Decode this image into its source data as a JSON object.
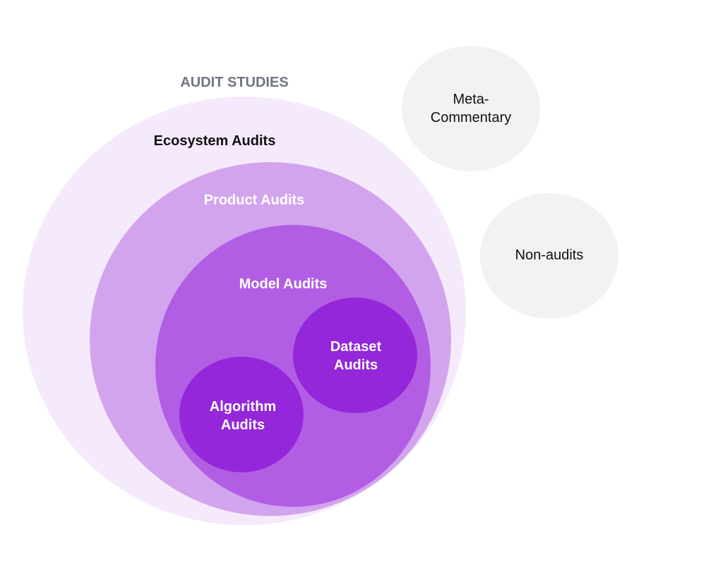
{
  "title": "AUDIT STUDIES",
  "nodes": {
    "ecosystem": {
      "label": "Ecosystem Audits",
      "color": "#f5eafb"
    },
    "product": {
      "label": "Product Audits",
      "color": "#d3a4ee"
    },
    "model": {
      "label": "Model Audits",
      "color": "#b15ee5"
    },
    "dataset": {
      "label": "Dataset Audits",
      "color": "#9427d9"
    },
    "algorithm": {
      "label": "Algorithm Audits",
      "color": "#9427d9"
    },
    "meta": {
      "label": "Meta-Commentary",
      "color": "#f1f2f4"
    },
    "nonaudits": {
      "label": "Non-audits",
      "color": "#f1f2f4"
    }
  },
  "colors": {
    "title": "#6f7582",
    "dark_text": "#111111",
    "light_text": "#ffffff"
  }
}
